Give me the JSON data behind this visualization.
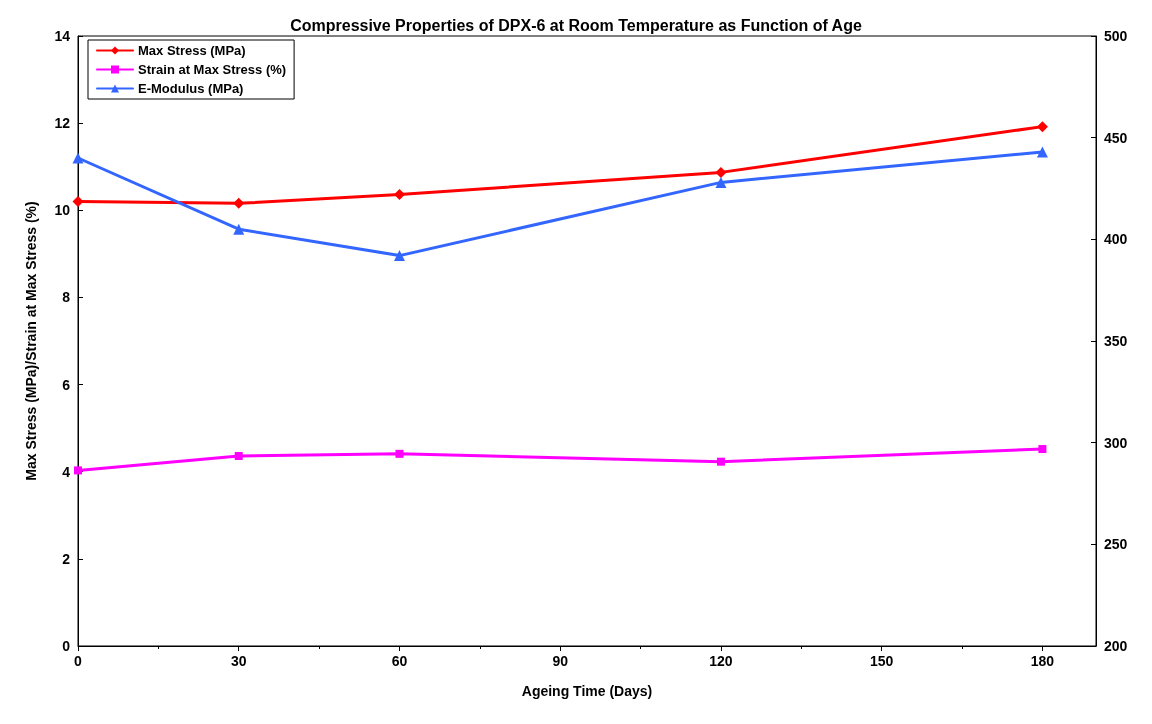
{
  "chart_data": {
    "type": "line",
    "title": "Compressive Properties of DPX-6 at Room Temperature as Function of Age",
    "xlabel": "Ageing Time (Days)",
    "ylabel": "Max Stress (MPa)/Strain at Max Stress (%)",
    "x": [
      0,
      30,
      60,
      120,
      180
    ],
    "series": [
      {
        "name": "Max Stress (MPa)",
        "color": "#ff0000",
        "marker": "diamond",
        "values": [
          10.2,
          10.16,
          10.36,
          10.87,
          11.92
        ]
      },
      {
        "name": "Strain at Max Stress (%)",
        "color": "#ff00ff",
        "marker": "square",
        "values": [
          4.03,
          4.36,
          4.41,
          4.23,
          4.52
        ]
      },
      {
        "name": "E-Modulus (MPa)",
        "color": "#3366ff",
        "marker": "triangle",
        "axis": "y2",
        "values": [
          440,
          405,
          392,
          428,
          443
        ]
      }
    ],
    "xlim": [
      0,
      190
    ],
    "xticks": [
      0,
      30,
      60,
      90,
      120,
      150,
      180
    ],
    "ylim": [
      0,
      14
    ],
    "yticks": [
      0,
      2,
      4,
      6,
      8,
      10,
      12,
      14
    ],
    "y2lim": [
      200,
      500
    ],
    "y2ticks": [
      200,
      250,
      300,
      350,
      400,
      450,
      500
    ],
    "grid": false,
    "legend": "top left"
  }
}
